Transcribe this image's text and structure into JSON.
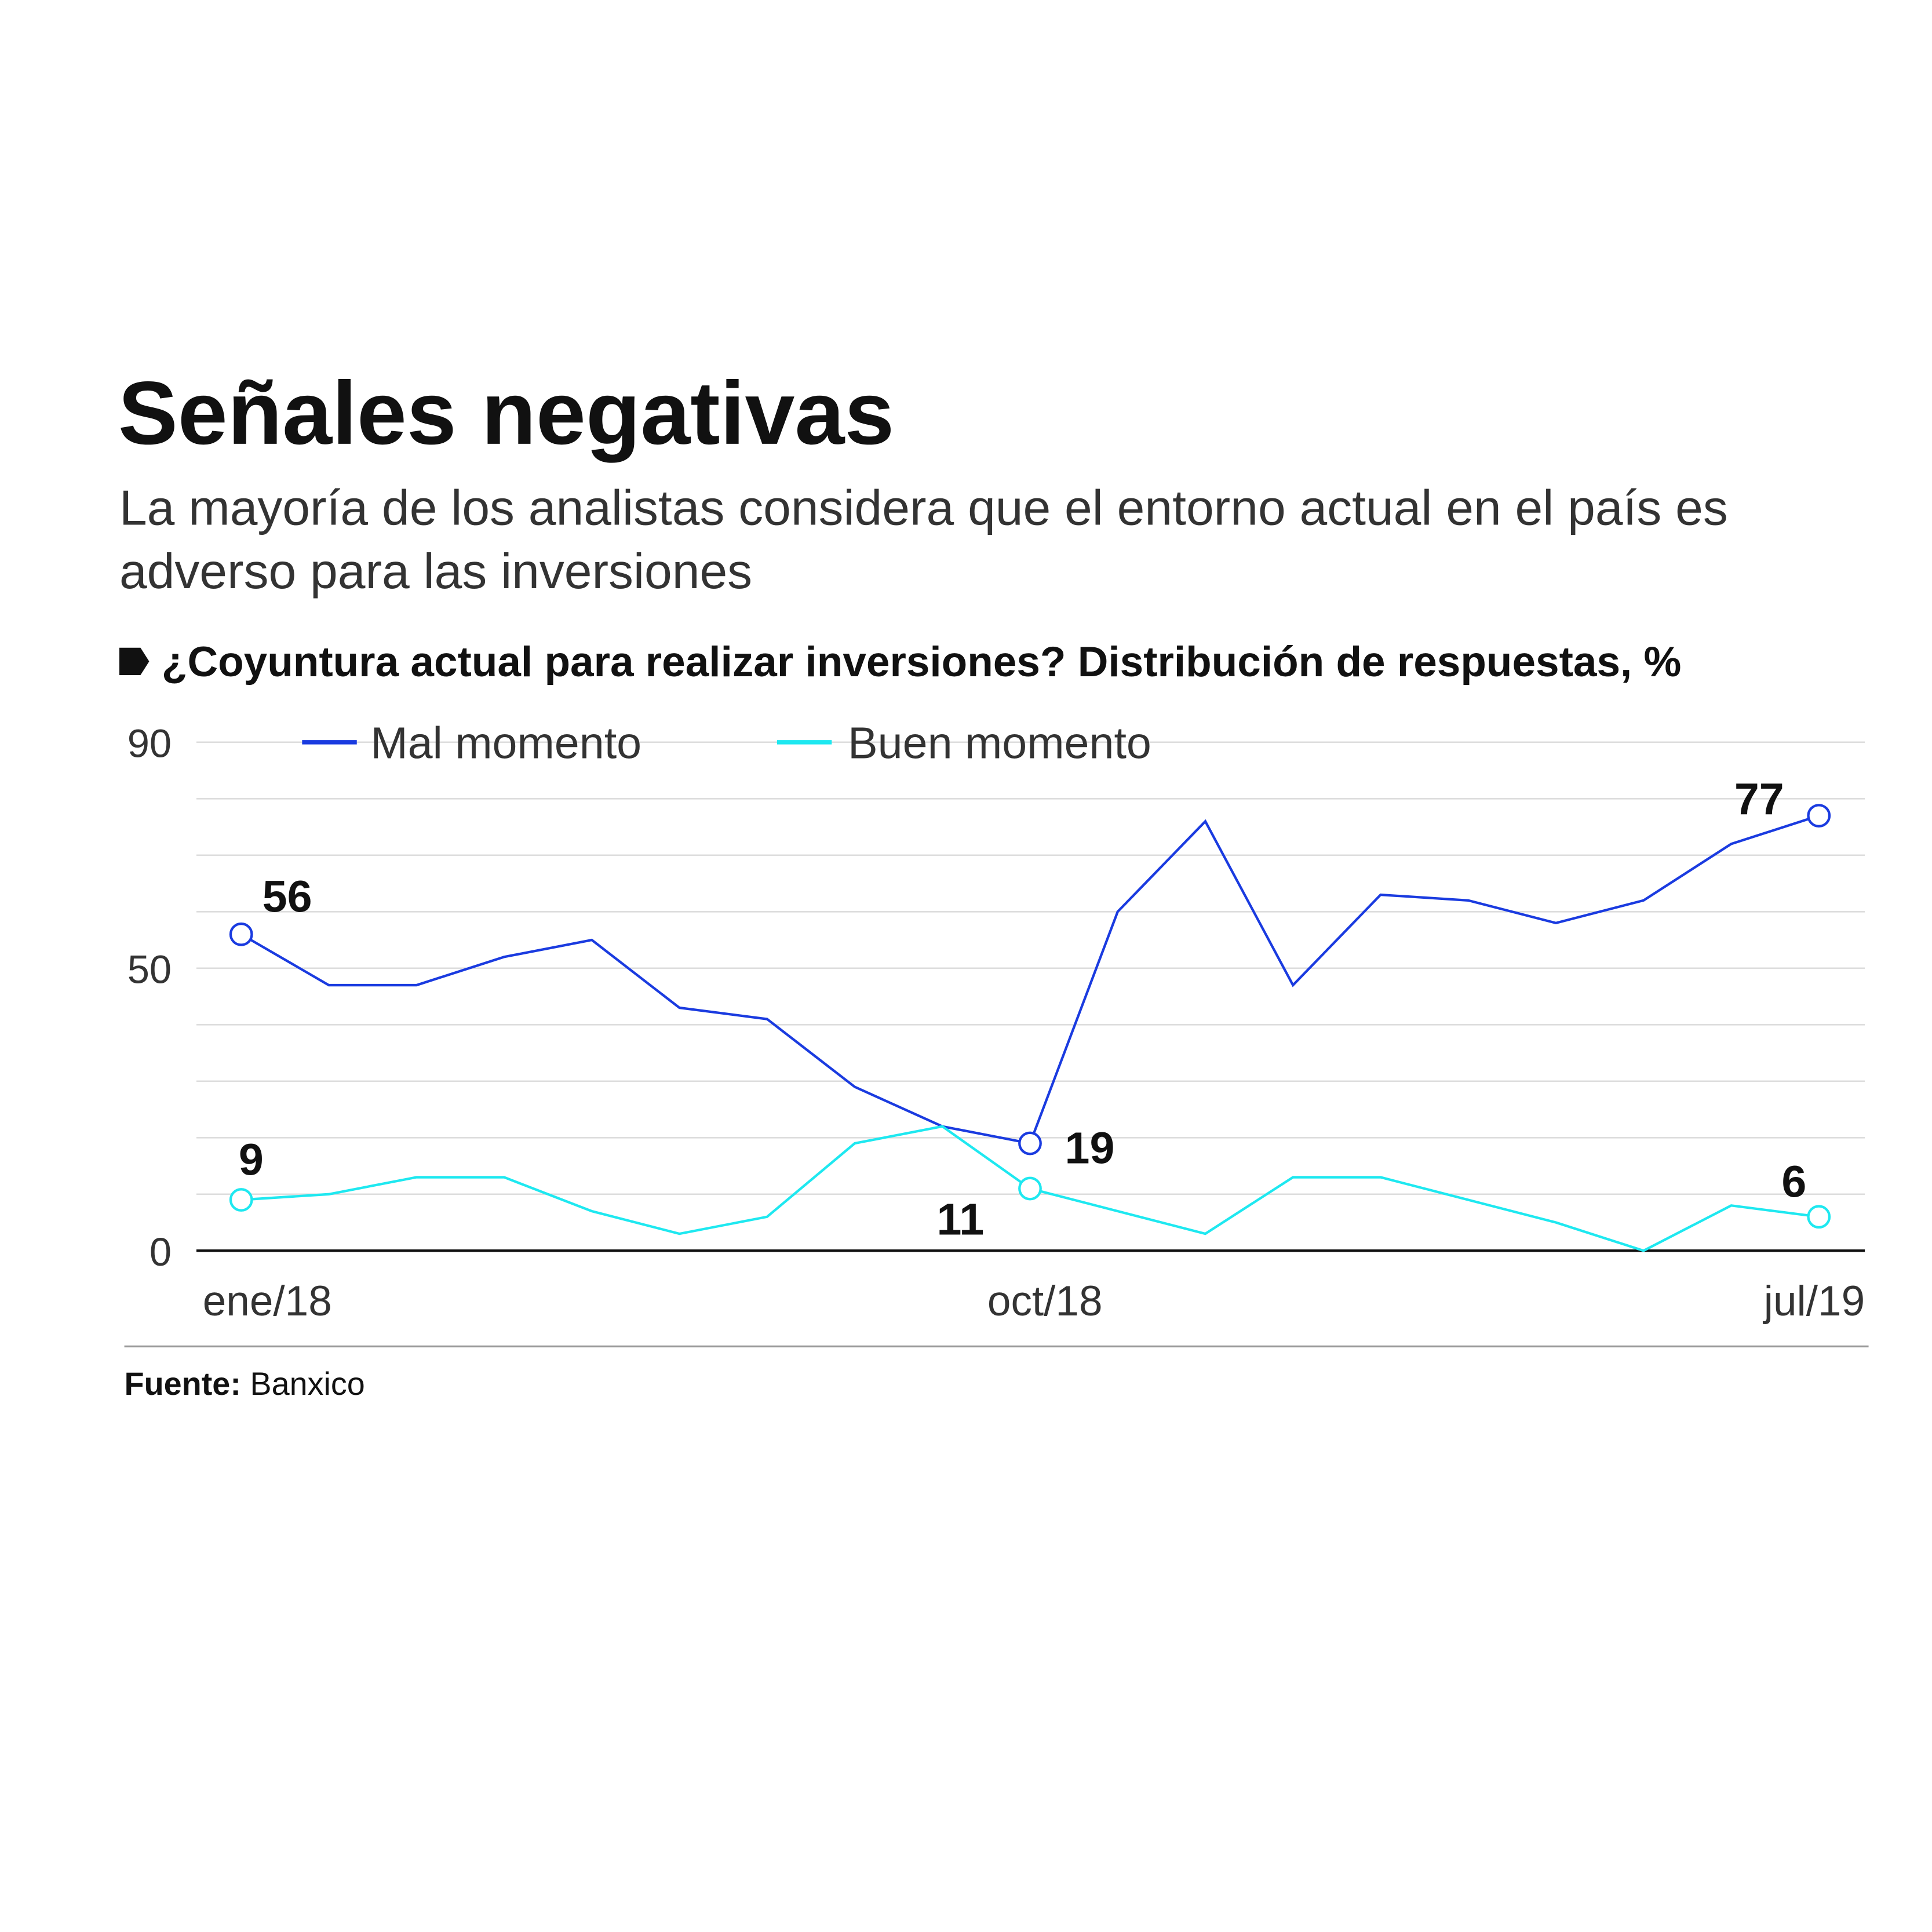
{
  "chart_data": {
    "type": "line",
    "title": "Señales negativas",
    "subtitle": [
      "La mayoría de los analistas considera que el entorno actual en el país es",
      "adverso para las inversiones"
    ],
    "chart_title": "¿Coyuntura actual para realizar inversiones? Distribución de respuestas, %",
    "categories": [
      "ene/18",
      null,
      null,
      null,
      null,
      null,
      null,
      null,
      null,
      "oct/18",
      null,
      null,
      null,
      null,
      null,
      null,
      null,
      null,
      "jul/19"
    ],
    "series": [
      {
        "name": "Mal momento",
        "color": "#1a3be0",
        "values": [
          56,
          47,
          47,
          52,
          55,
          43,
          41,
          29,
          22,
          19,
          60,
          76,
          47,
          63,
          62,
          58,
          62,
          72,
          77
        ]
      },
      {
        "name": "Buen momento",
        "color": "#1ee8f0",
        "values": [
          9,
          10,
          13,
          13,
          7,
          3,
          6,
          19,
          22,
          11,
          7,
          3,
          13,
          13,
          9,
          5,
          0,
          8,
          6
        ]
      }
    ],
    "labeled_points": [
      0,
      9,
      18
    ],
    "ylim": [
      0,
      90
    ],
    "yticks": [
      0,
      50,
      90
    ],
    "ygrid": [
      10,
      20,
      30,
      40,
      50,
      60,
      70,
      80,
      90
    ],
    "source_label": "Fuente:",
    "source": "Banxico"
  }
}
